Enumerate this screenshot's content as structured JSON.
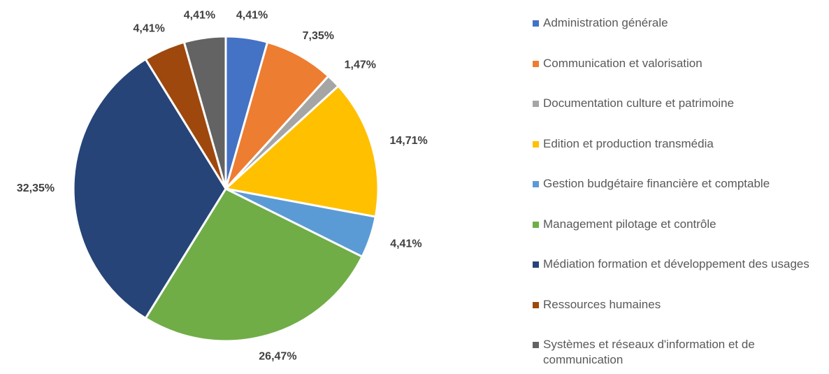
{
  "chart_data": {
    "type": "pie",
    "categories": [
      "Administration générale",
      "Communication et valorisation",
      "Documentation culture et patrimoine",
      "Edition et production transmédia",
      "Gestion budgétaire financière et comptable",
      "Management pilotage et contrôle",
      "Médiation formation et développement des usages",
      "Ressources humaines",
      "Systèmes et réseaux d'information et de communication"
    ],
    "values": [
      4.41,
      7.35,
      1.47,
      14.71,
      4.41,
      26.47,
      32.35,
      4.41,
      4.41
    ],
    "value_labels": [
      "4,41%",
      "7,35%",
      "1,47%",
      "14,71%",
      "4,41%",
      "26,47%",
      "32,35%",
      "4,41%",
      "4,41%"
    ],
    "colors": [
      "#4472c4",
      "#ed7d31",
      "#a5a5a5",
      "#ffc000",
      "#5b9bd5",
      "#70ad47",
      "#264478",
      "#9e480e",
      "#636363"
    ],
    "legend": "right"
  }
}
